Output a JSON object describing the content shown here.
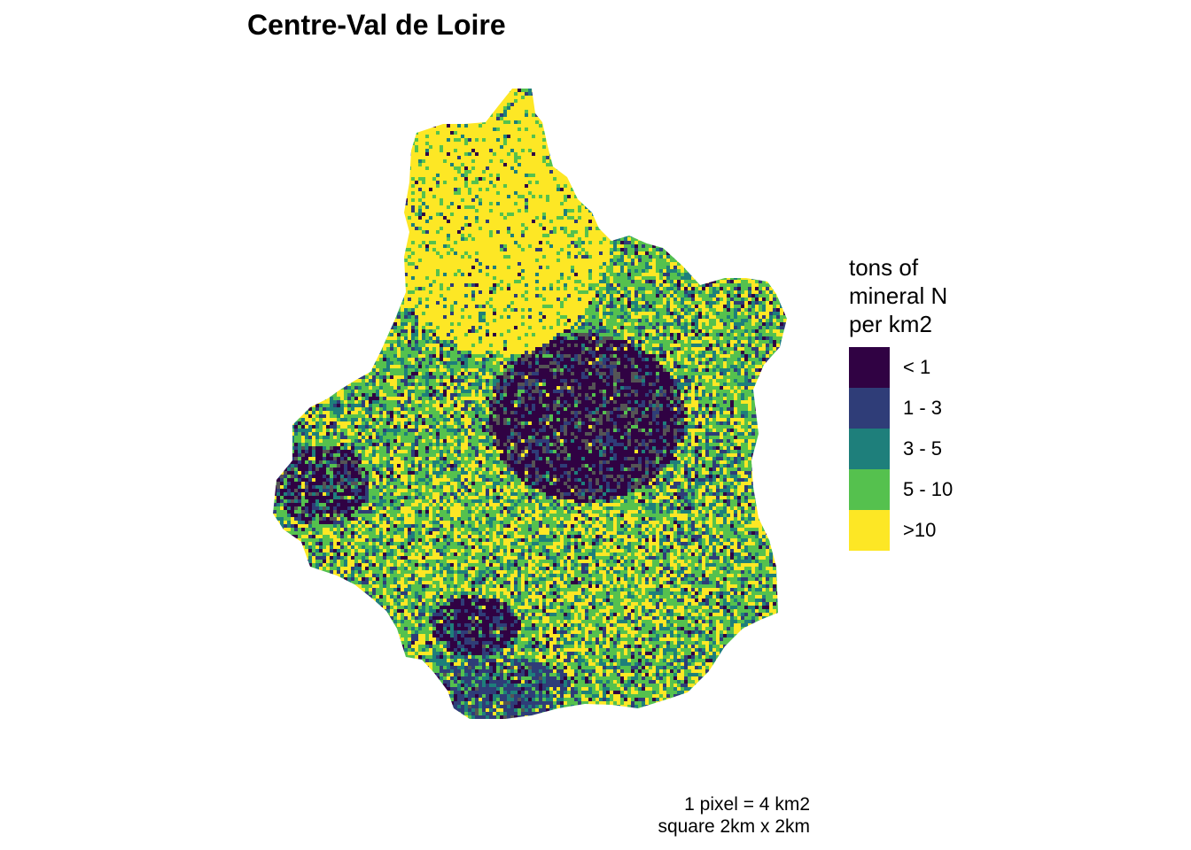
{
  "title": "Centre-Val de Loire",
  "legend": {
    "title": "tons of\nmineral N\nper km2",
    "items": [
      {
        "label": "< 1",
        "color": "#300243"
      },
      {
        "label": "1 - 3",
        "color": "#2f3d78"
      },
      {
        "label": "3 - 5",
        "color": "#1e7f7b"
      },
      {
        "label": "5 - 10",
        "color": "#55c14e"
      },
      {
        "label": ">10",
        "color": "#fde725"
      }
    ],
    "na_color": "#555555"
  },
  "caption": {
    "line1": "1 pixel = 4 km2",
    "line2": "square 2km x 2km"
  }
}
